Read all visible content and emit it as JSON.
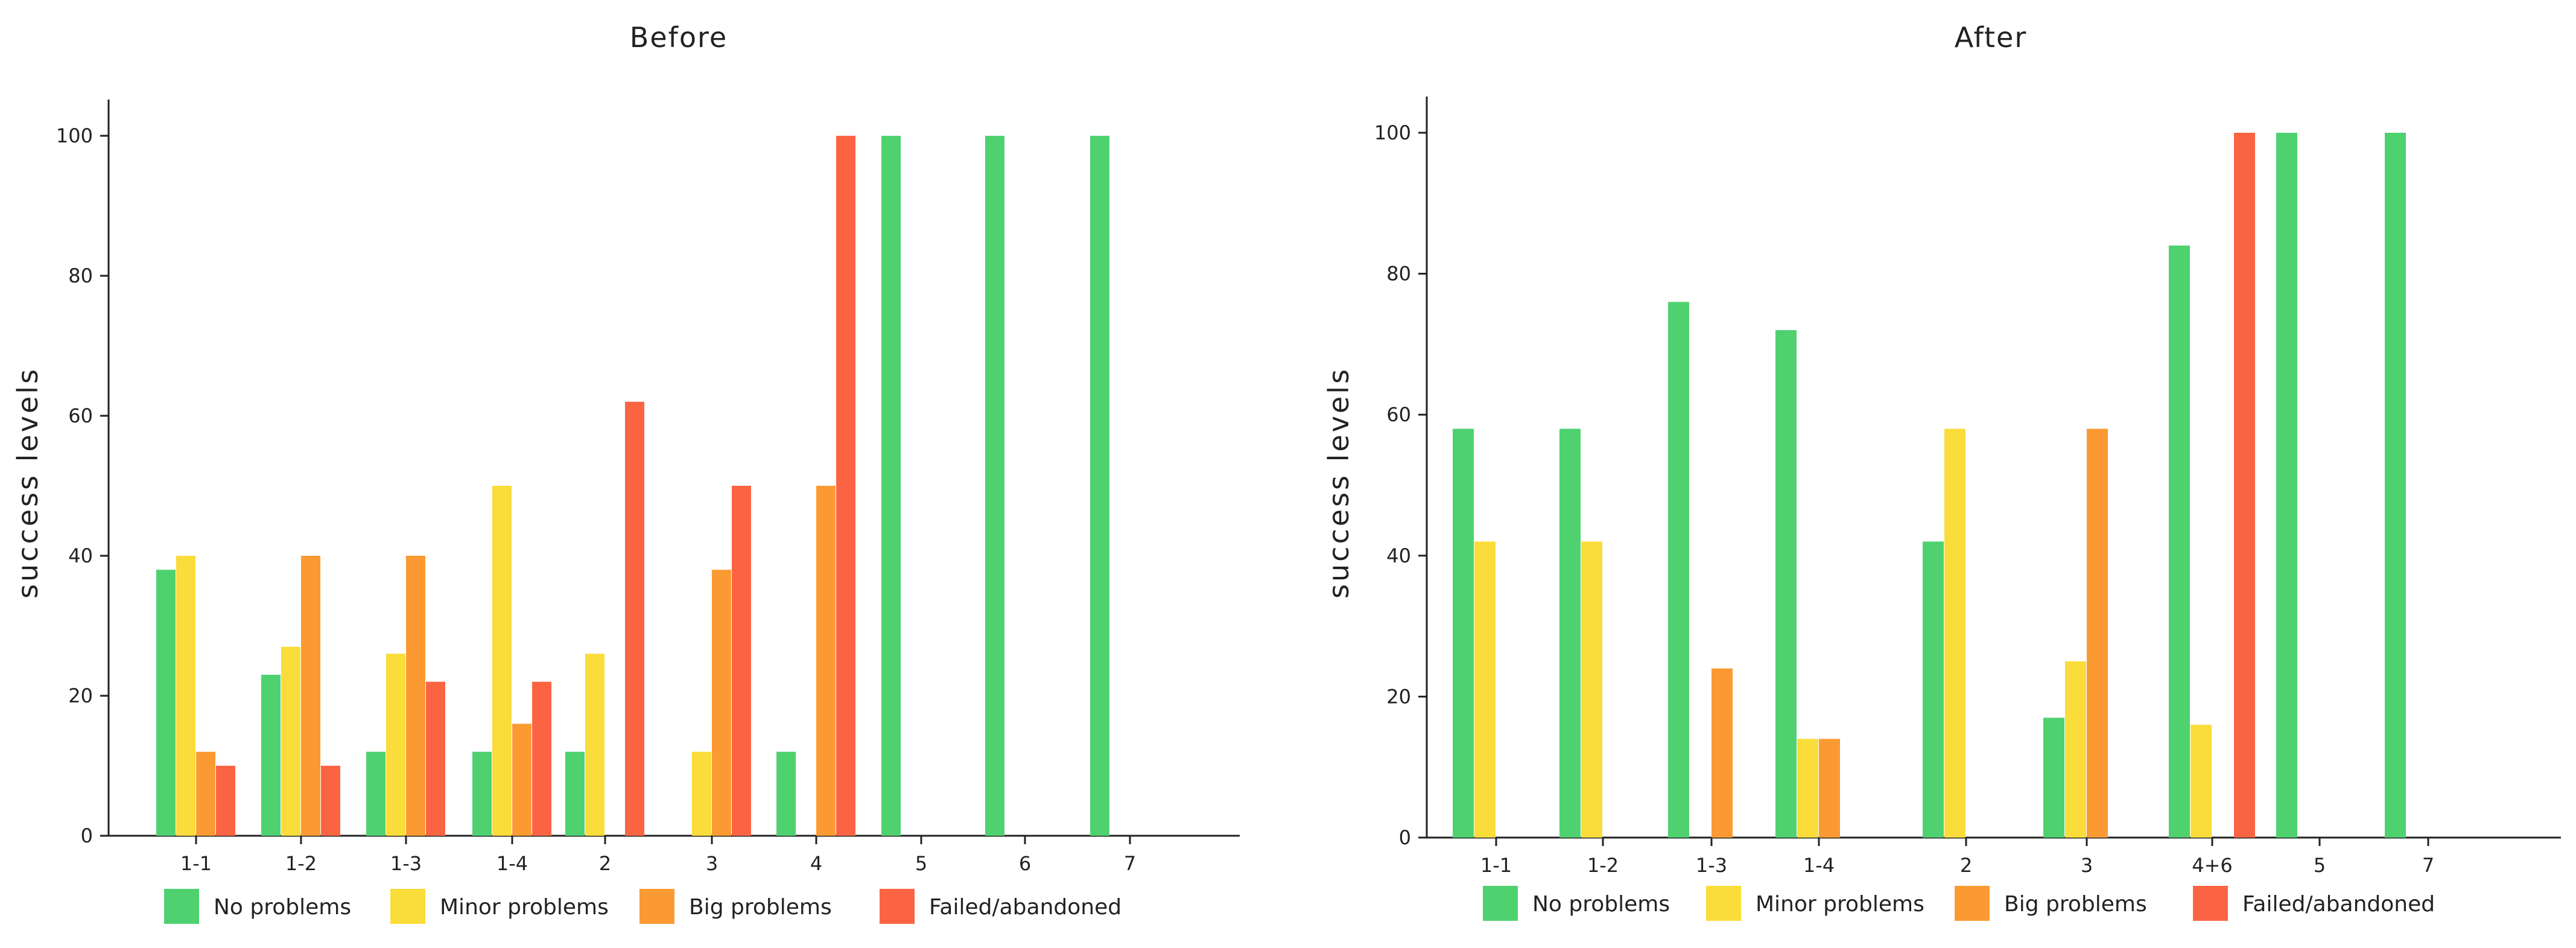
{
  "colors": {
    "No problems": "#4fd170",
    "Minor problems": "#fadc3a",
    "Big problems": "#fb9a32",
    "Failed/abandoned": "#fb6443"
  },
  "chart_data": [
    {
      "type": "bar",
      "title": "Before",
      "xlabel": "",
      "ylabel": "success levels",
      "ylim": [
        0,
        100
      ],
      "yticks": [
        0,
        20,
        40,
        60,
        80,
        100
      ],
      "categories": [
        "1-1",
        "1-2",
        "1-3",
        "1-4",
        "2",
        "3",
        "4",
        "5",
        "6",
        "7"
      ],
      "category_labels": [
        "1-1",
        "1-2",
        "1-3",
        "1-4",
        "2",
        "3",
        "4",
        "5",
        "6",
        "7"
      ],
      "series": [
        {
          "name": "No problems",
          "values": [
            38,
            23,
            12,
            12,
            12,
            0,
            12,
            100,
            100,
            100
          ]
        },
        {
          "name": "Minor problems",
          "values": [
            40,
            27,
            26,
            50,
            26,
            12,
            0,
            0,
            0,
            0
          ]
        },
        {
          "name": "Big problems",
          "values": [
            12,
            40,
            40,
            16,
            0,
            38,
            50,
            0,
            0,
            0
          ]
        },
        {
          "name": "Failed/abandoned",
          "values": [
            10,
            10,
            22,
            22,
            62,
            50,
            100,
            0,
            0,
            0
          ]
        }
      ],
      "legend": [
        "No problems",
        "Minor problems",
        "Big problems",
        "Failed/abandoned"
      ],
      "legend_position": "bottom"
    },
    {
      "type": "bar",
      "title": "After",
      "xlabel": "",
      "ylabel": "success levels",
      "ylim": [
        0,
        100
      ],
      "yticks": [
        0,
        20,
        40,
        60,
        80,
        100
      ],
      "categories": [
        "1-1",
        "1-2",
        "1-3",
        "1-4",
        "2",
        "3",
        "4+6",
        "5",
        "7"
      ],
      "category_labels": [
        "1-1",
        "1-2",
        "1-3",
        "1-4",
        "2",
        "3",
        "4+6",
        "5",
        "7"
      ],
      "series": [
        {
          "name": "No problems",
          "values": [
            58,
            58,
            76,
            72,
            42,
            17,
            84,
            100,
            100
          ]
        },
        {
          "name": "Minor problems",
          "values": [
            42,
            42,
            0,
            14,
            58,
            25,
            16,
            0,
            0
          ]
        },
        {
          "name": "Big problems",
          "values": [
            0,
            0,
            24,
            14,
            0,
            58,
            0,
            0,
            0
          ]
        },
        {
          "name": "Failed/abandoned",
          "values": [
            0,
            0,
            0,
            0,
            0,
            0,
            100,
            0,
            0
          ]
        }
      ],
      "legend": [
        "No problems",
        "Minor problems",
        "Big problems",
        "Failed/abandoned"
      ],
      "legend_position": "bottom"
    }
  ]
}
